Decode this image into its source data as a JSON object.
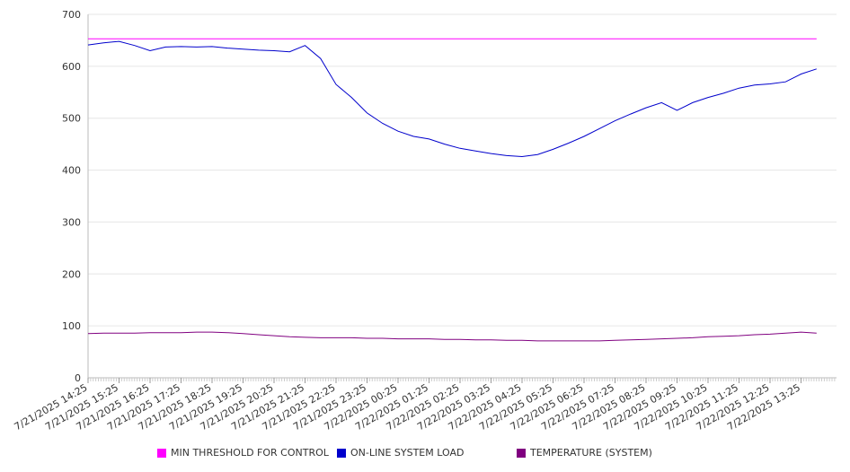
{
  "chart_data": {
    "type": "line",
    "title": "",
    "xlabel": "",
    "ylabel": "",
    "ylim": [
      0,
      700
    ],
    "yticks": [
      0,
      100,
      200,
      300,
      400,
      500,
      600,
      700
    ],
    "xticks": [
      "7/21/2025 14:25",
      "7/21/2025 15:25",
      "7/21/2025 16:25",
      "7/21/2025 17:25",
      "7/21/2025 18:25",
      "7/21/2025 19:25",
      "7/21/2025 20:25",
      "7/21/2025 21:25",
      "7/21/2025 22:25",
      "7/21/2025 23:25",
      "7/22/2025 00:25",
      "7/22/2025 01:25",
      "7/22/2025 02:25",
      "7/22/2025 03:25",
      "7/22/2025 04:25",
      "7/22/2025 05:25",
      "7/22/2025 06:25",
      "7/22/2025 07:25",
      "7/22/2025 08:25",
      "7/22/2025 09:25",
      "7/22/2025 10:25",
      "7/22/2025 11:25",
      "7/22/2025 12:25",
      "7/22/2025 13:25"
    ],
    "grid": true,
    "legend_position": "bottom",
    "x": [
      "7/21/2025 14:25",
      "7/21/2025 14:55",
      "7/21/2025 15:25",
      "7/21/2025 15:55",
      "7/21/2025 16:25",
      "7/21/2025 16:55",
      "7/21/2025 17:25",
      "7/21/2025 17:55",
      "7/21/2025 18:25",
      "7/21/2025 18:55",
      "7/21/2025 19:25",
      "7/21/2025 19:55",
      "7/21/2025 20:25",
      "7/21/2025 20:55",
      "7/21/2025 21:25",
      "7/21/2025 21:55",
      "7/21/2025 22:25",
      "7/21/2025 22:55",
      "7/21/2025 23:25",
      "7/21/2025 23:55",
      "7/22/2025 00:25",
      "7/22/2025 00:55",
      "7/22/2025 01:25",
      "7/22/2025 01:55",
      "7/22/2025 02:25",
      "7/22/2025 02:55",
      "7/22/2025 03:25",
      "7/22/2025 03:55",
      "7/22/2025 04:25",
      "7/22/2025 04:55",
      "7/22/2025 05:25",
      "7/22/2025 05:55",
      "7/22/2025 06:25",
      "7/22/2025 06:55",
      "7/22/2025 07:25",
      "7/22/2025 07:55",
      "7/22/2025 08:25",
      "7/22/2025 08:55",
      "7/22/2025 09:25",
      "7/22/2025 09:55",
      "7/22/2025 10:25",
      "7/22/2025 10:55",
      "7/22/2025 11:25",
      "7/22/2025 11:55",
      "7/22/2025 12:25",
      "7/22/2025 12:55",
      "7/22/2025 13:25",
      "7/22/2025 13:55"
    ],
    "series": [
      {
        "name": "MIN THRESHOLD FOR CONTROL",
        "color": "#ff00ff",
        "values": [
          653,
          653,
          653,
          653,
          653,
          653,
          653,
          653,
          653,
          653,
          653,
          653,
          653,
          653,
          653,
          653,
          653,
          653,
          653,
          653,
          653,
          653,
          653,
          653,
          653,
          653,
          653,
          653,
          653,
          653,
          653,
          653,
          653,
          653,
          653,
          653,
          653,
          653,
          653,
          653,
          653,
          653,
          653,
          653,
          653,
          653,
          653,
          653
        ]
      },
      {
        "name": "ON-LINE SYSTEM LOAD",
        "color": "#0000cc",
        "values": [
          641,
          645,
          648,
          640,
          630,
          637,
          638,
          637,
          638,
          635,
          633,
          631,
          630,
          628,
          640,
          615,
          565,
          540,
          510,
          490,
          475,
          465,
          460,
          450,
          442,
          437,
          432,
          428,
          426,
          430,
          440,
          452,
          465,
          480,
          495,
          508,
          520,
          530,
          515,
          530,
          540,
          548,
          558,
          564,
          566,
          570,
          585,
          595
        ]
      },
      {
        "name": "TEMPERATURE (SYSTEM)",
        "color": "#800080",
        "values": [
          85,
          86,
          86,
          86,
          87,
          87,
          87,
          88,
          88,
          87,
          85,
          83,
          81,
          79,
          78,
          77,
          77,
          77,
          76,
          76,
          75,
          75,
          75,
          74,
          74,
          73,
          73,
          72,
          72,
          71,
          71,
          71,
          71,
          71,
          72,
          73,
          74,
          75,
          76,
          77,
          79,
          80,
          81,
          83,
          84,
          86,
          88,
          86
        ]
      }
    ]
  }
}
